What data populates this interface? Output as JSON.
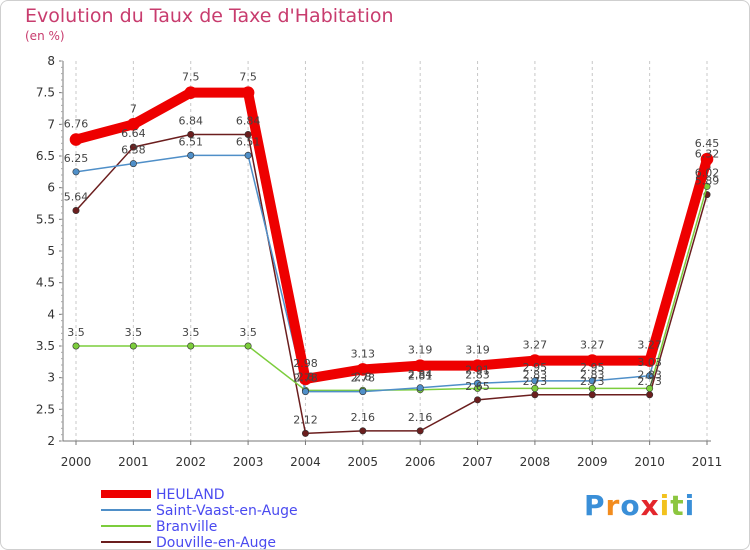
{
  "chart_data": {
    "type": "line",
    "title": "Evolution du Taux de Taxe d'Habitation",
    "subtitle": "(en %)",
    "x": [
      "2000",
      "2001",
      "2002",
      "2003",
      "2004",
      "2005",
      "2006",
      "2007",
      "2008",
      "2009",
      "2010",
      "2011"
    ],
    "ylim": [
      2,
      8
    ],
    "yticks": [
      "2",
      "2.5",
      "3",
      "3.5",
      "4",
      "4.5",
      "5",
      "5.5",
      "6",
      "6.5",
      "7",
      "7.5",
      "8"
    ],
    "grid": "vertical",
    "legend_position": "bottom-left",
    "series": [
      {
        "name": "HEULAND",
        "color": "#ee0000",
        "values": [
          6.76,
          7,
          7.5,
          7.5,
          2.98,
          3.13,
          3.19,
          3.19,
          3.27,
          3.27,
          3.27,
          6.45
        ],
        "labels": [
          "6.76",
          "7",
          "7.5",
          "7.5",
          "2.98",
          "3.13",
          "3.19",
          "3.19",
          "3.27",
          "3.27",
          "3.27",
          "6.45"
        ]
      },
      {
        "name": "Saint-Vaast-en-Auge",
        "color": "#4f8fc8",
        "values": [
          6.25,
          6.38,
          6.51,
          6.51,
          2.78,
          2.78,
          2.84,
          2.91,
          2.95,
          2.95,
          3.03,
          6.32
        ],
        "labels": [
          "6.25",
          "6.38",
          "6.51",
          "6.51",
          "2.78",
          "2.78",
          "2.84",
          "2.91",
          "2.95",
          "2.95",
          "3.03",
          "6.32"
        ]
      },
      {
        "name": "Branville",
        "color": "#7ccd3c",
        "values": [
          3.5,
          3.5,
          3.5,
          3.5,
          2.8,
          2.8,
          2.81,
          2.83,
          2.83,
          2.83,
          2.83,
          6.02
        ],
        "labels": [
          "3.5",
          "3.5",
          "3.5",
          "3.5",
          "2.8",
          "2.8",
          "2.81",
          "2.83",
          "2.83",
          "2.83",
          "2.83",
          "6.02"
        ]
      },
      {
        "name": "Douville-en-Auge",
        "color": "#6b1e1e",
        "values": [
          5.64,
          6.64,
          6.84,
          6.84,
          2.12,
          2.16,
          2.16,
          2.65,
          2.73,
          2.73,
          2.73,
          5.89
        ],
        "labels": [
          "5.64",
          "6.64",
          "6.84",
          "6.84",
          "2.12",
          "2.16",
          "2.16",
          "2.65",
          "2.73",
          "2.73",
          "2.73",
          "5.89"
        ]
      }
    ]
  },
  "brand": {
    "letters": [
      "P",
      "r",
      "o",
      "x",
      "i",
      "t",
      "i"
    ],
    "colors": [
      "#3a8fd8",
      "#f28c1e",
      "#3a8fd8",
      "#e3262c",
      "#f2c21e",
      "#8cc63f",
      "#3a8fd8"
    ]
  }
}
